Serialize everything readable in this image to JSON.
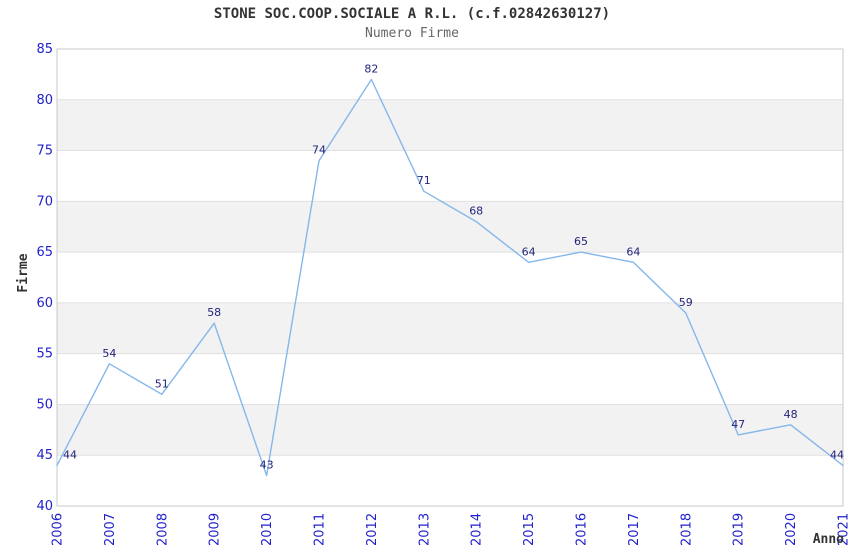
{
  "header": {
    "title": "STONE SOC.COOP.SOCIALE A R.L. (c.f.02842630127)",
    "subtitle": "Numero Firme"
  },
  "chart_data": {
    "type": "line",
    "title": "STONE SOC.COOP.SOCIALE A R.L. (c.f.02842630127)",
    "subtitle": "Numero Firme",
    "xlabel": "Anno",
    "ylabel": "Firme",
    "categories": [
      "2006",
      "2007",
      "2008",
      "2009",
      "2010",
      "2011",
      "2012",
      "2013",
      "2014",
      "2015",
      "2016",
      "2017",
      "2018",
      "2019",
      "2020",
      "2021"
    ],
    "values": [
      44,
      54,
      51,
      58,
      43,
      74,
      82,
      71,
      68,
      64,
      65,
      64,
      59,
      47,
      48,
      44
    ],
    "ylim": [
      40,
      85
    ],
    "ytick_step": 5,
    "yticks": [
      40,
      45,
      50,
      55,
      60,
      65,
      70,
      75,
      80,
      85
    ],
    "grid": true,
    "legend_position": "none",
    "colors": {
      "line": "#85b7ea",
      "tick_label": "#2222cc",
      "data_label": "#23237a",
      "band": "#f2f2f2",
      "gridline": "#e0e0e0",
      "plot_border": "#c8c8c8",
      "title": "#333333",
      "subtitle": "#666666",
      "axis_title": "#333333",
      "background": "#ffffff"
    }
  }
}
